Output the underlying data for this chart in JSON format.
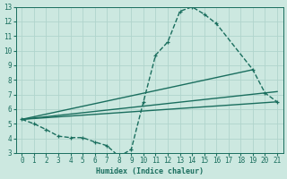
{
  "xlabel": "Humidex (Indice chaleur)",
  "xlim": [
    -0.5,
    21.5
  ],
  "ylim": [
    3,
    13
  ],
  "xticks": [
    0,
    1,
    2,
    3,
    4,
    5,
    6,
    7,
    8,
    9,
    10,
    11,
    12,
    13,
    14,
    15,
    16,
    17,
    18,
    19,
    20,
    21
  ],
  "yticks": [
    3,
    4,
    5,
    6,
    7,
    8,
    9,
    10,
    11,
    12,
    13
  ],
  "bg_color": "#cce8e0",
  "grid_color": "#b0d4cc",
  "line_color": "#1a6e5e",
  "dashed_x": [
    0,
    1,
    2,
    3,
    4,
    5,
    6,
    7,
    8,
    9,
    10,
    11,
    12,
    13,
    14,
    15,
    16,
    19,
    20,
    21
  ],
  "dashed_y": [
    5.3,
    5.0,
    4.6,
    4.15,
    4.05,
    4.05,
    3.75,
    3.5,
    2.75,
    3.25,
    6.5,
    9.7,
    10.6,
    12.7,
    13.0,
    12.5,
    11.85,
    8.7,
    7.1,
    6.5
  ],
  "line1_x": [
    0,
    19
  ],
  "line1_y": [
    5.3,
    8.7
  ],
  "line2_x": [
    0,
    21
  ],
  "line2_y": [
    5.3,
    7.2
  ],
  "line3_x": [
    0,
    21
  ],
  "line3_y": [
    5.3,
    6.5
  ]
}
